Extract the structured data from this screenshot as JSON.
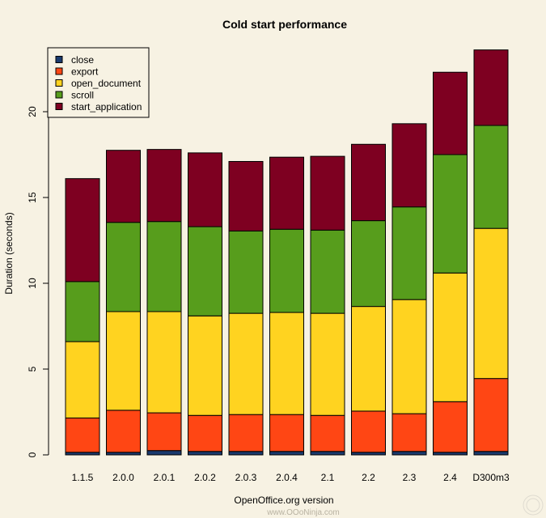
{
  "chart_data": {
    "type": "stacked-bar",
    "title": "Cold start performance",
    "xlabel": "OpenOffice.org version",
    "ylabel": "Duration (seconds)",
    "ylim": [
      0,
      24
    ],
    "yticks": [
      0,
      5,
      10,
      15,
      20
    ],
    "categories": [
      "1.1.5",
      "2.0.0",
      "2.0.1",
      "2.0.2",
      "2.0.3",
      "2.0.4",
      "2.1",
      "2.2",
      "2.3",
      "2.4",
      "D300m3"
    ],
    "series": [
      {
        "name": "close",
        "color": "#1a3a6e",
        "values": [
          0.15,
          0.15,
          0.25,
          0.2,
          0.2,
          0.2,
          0.2,
          0.15,
          0.2,
          0.15,
          0.2
        ]
      },
      {
        "name": "export",
        "color": "#ff4614",
        "values": [
          2.0,
          2.45,
          2.2,
          2.1,
          2.15,
          2.15,
          2.1,
          2.4,
          2.2,
          2.95,
          4.25
        ]
      },
      {
        "name": "open_document",
        "color": "#ffd320",
        "values": [
          4.45,
          5.75,
          5.9,
          5.8,
          5.9,
          5.95,
          5.95,
          6.1,
          6.65,
          7.5,
          8.75
        ]
      },
      {
        "name": "scroll",
        "color": "#579d1c",
        "values": [
          3.5,
          5.2,
          5.25,
          5.2,
          4.8,
          4.85,
          4.85,
          5.0,
          5.4,
          6.9,
          6.0
        ]
      },
      {
        "name": "start_application",
        "color": "#7e0021",
        "values": [
          6.0,
          4.2,
          4.2,
          4.3,
          4.05,
          4.2,
          4.3,
          4.45,
          4.85,
          4.8,
          4.4
        ]
      }
    ],
    "legend": {
      "position": "top-left"
    }
  },
  "watermark": "www.OOoNinja.com"
}
